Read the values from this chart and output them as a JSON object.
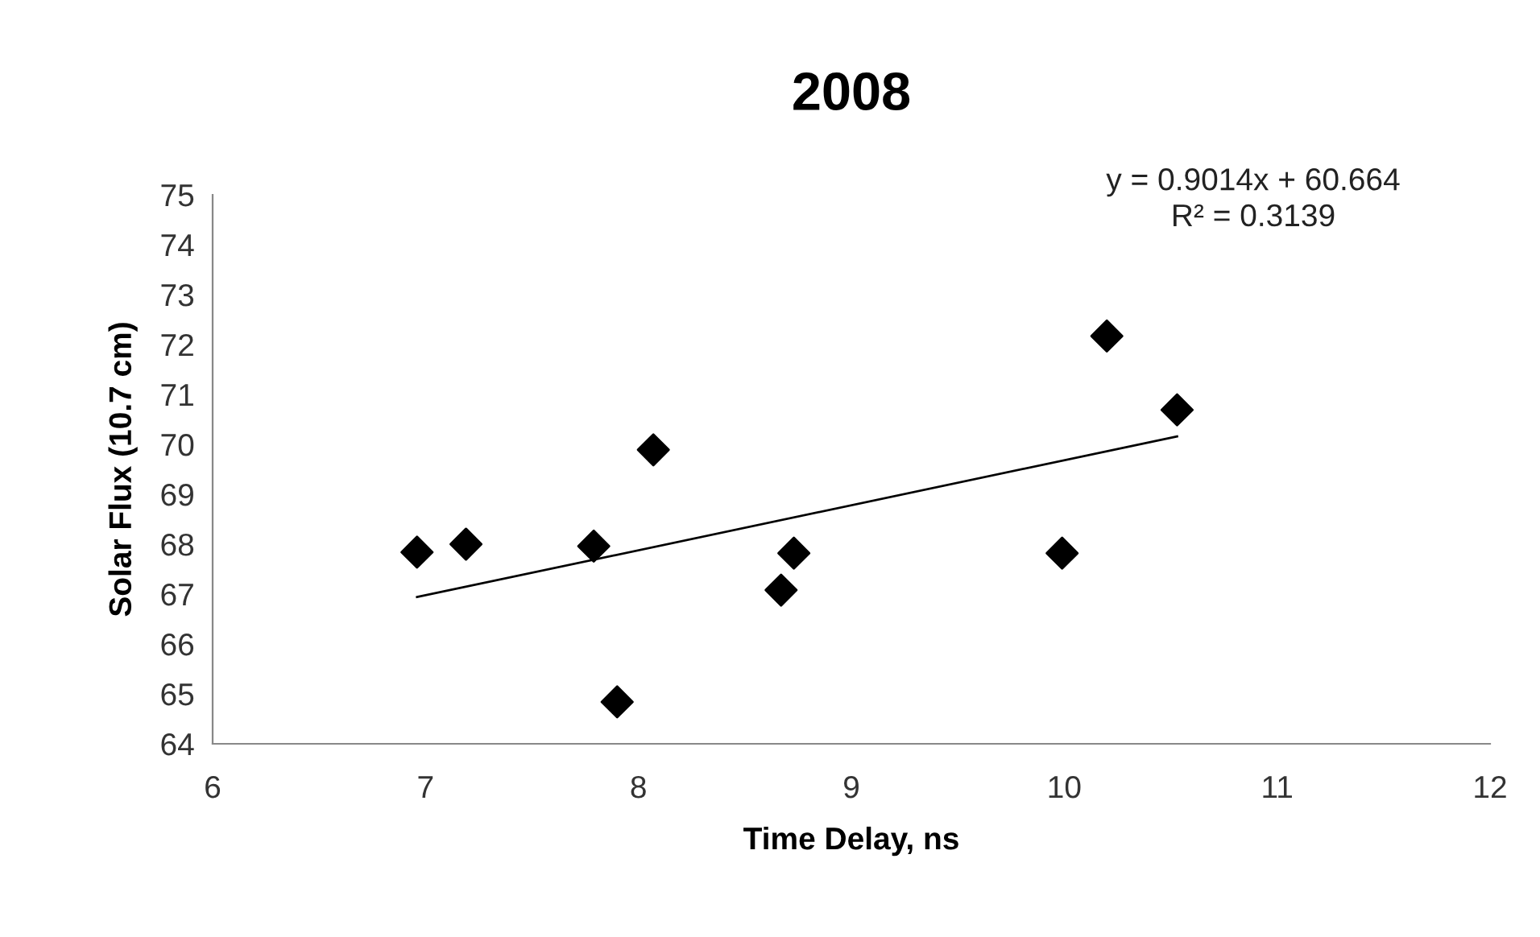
{
  "chart_data": {
    "type": "scatter",
    "title": "2008",
    "xlabel": "Time Delay, ns",
    "ylabel": "Solar Flux (10.7 cm)",
    "series": [
      {
        "color": "#000000",
        "marker": "diamond",
        "x": [
          6.96,
          7.19,
          7.79,
          8.07,
          7.9,
          8.67,
          8.73,
          9.99,
          10.2,
          10.53
        ],
        "values": [
          67.84,
          68.0,
          67.96,
          69.89,
          64.84,
          67.08,
          67.82,
          67.82,
          72.17,
          70.69
        ]
      },
      {
        "type": "line",
        "color": "#000000",
        "marker": "none",
        "x": [
          6.96,
          10.53
        ],
        "values": [
          66.94,
          70.16
        ]
      }
    ],
    "xlim": [
      6,
      12
    ],
    "xticks": [
      6,
      7,
      8,
      9,
      10,
      11,
      12
    ],
    "ylim": [
      64,
      75
    ],
    "yticks": [
      64,
      65,
      66,
      67,
      68,
      69,
      70,
      71,
      72,
      73,
      74,
      75
    ],
    "grid": false,
    "legend": false,
    "annotations": [
      "y = 0.9014x + 60.664\nR² = 0.3139"
    ]
  }
}
